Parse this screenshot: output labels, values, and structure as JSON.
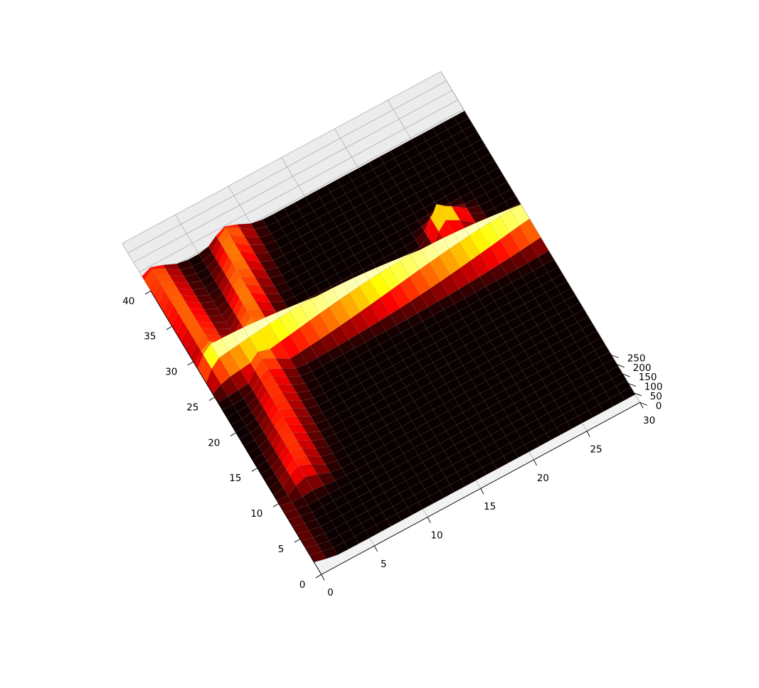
{
  "chart_data": {
    "type": "surface3d",
    "title": "",
    "xlabel": "",
    "ylabel": "",
    "zlabel": "",
    "colormap": "hot",
    "grid": true,
    "xlim": [
      0,
      30
    ],
    "ylim": [
      0,
      40
    ],
    "zlim": [
      0,
      250
    ],
    "x_ticks": [
      {
        "value": 0,
        "label": "0"
      },
      {
        "value": 5,
        "label": "5"
      },
      {
        "value": 10,
        "label": "10"
      },
      {
        "value": 15,
        "label": "15"
      },
      {
        "value": 20,
        "label": "20"
      },
      {
        "value": 25,
        "label": "25"
      },
      {
        "value": 30,
        "label": "30"
      }
    ],
    "y_ticks": [
      {
        "value": 0,
        "label": "0"
      },
      {
        "value": 5,
        "label": "5"
      },
      {
        "value": 10,
        "label": "10"
      },
      {
        "value": 15,
        "label": "15"
      },
      {
        "value": 20,
        "label": "20"
      },
      {
        "value": 25,
        "label": "25"
      },
      {
        "value": 30,
        "label": "30"
      },
      {
        "value": 35,
        "label": "35"
      },
      {
        "value": 40,
        "label": "40"
      }
    ],
    "z_ticks": [
      {
        "value": 0,
        "label": "0"
      },
      {
        "value": 50,
        "label": "50"
      },
      {
        "value": 100,
        "label": "100"
      },
      {
        "value": 150,
        "label": "150"
      },
      {
        "value": 200,
        "label": "200"
      },
      {
        "value": 250,
        "label": "250"
      }
    ],
    "ridges": [
      {
        "name": "",
        "from": {
          "x": 2,
          "y": 26
        },
        "to": {
          "x": 30,
          "y": 23
        },
        "peak": 250,
        "width": 1.3
      },
      {
        "name": "",
        "from": {
          "x": 2,
          "y": 26
        },
        "to": {
          "x": 1,
          "y": 39
        },
        "peak": 140,
        "width": 1.1
      },
      {
        "name": "",
        "from": {
          "x": 3,
          "y": 10
        },
        "to": {
          "x": 5,
          "y": 23
        },
        "peak": 120,
        "width": 1.1
      },
      {
        "name": "",
        "from": {
          "x": 5,
          "y": 23
        },
        "to": {
          "x": 8,
          "y": 39
        },
        "peak": 150,
        "width": 1.1
      },
      {
        "name": "",
        "from": {
          "x": 0,
          "y": 8
        },
        "to": {
          "x": 0,
          "y": 0
        },
        "peak": 40,
        "width": 0.8
      }
    ],
    "bumps": [
      {
        "x": 18,
        "y": 24,
        "peak": 225
      },
      {
        "x": 24,
        "y": 28,
        "peak": 245
      }
    ]
  }
}
